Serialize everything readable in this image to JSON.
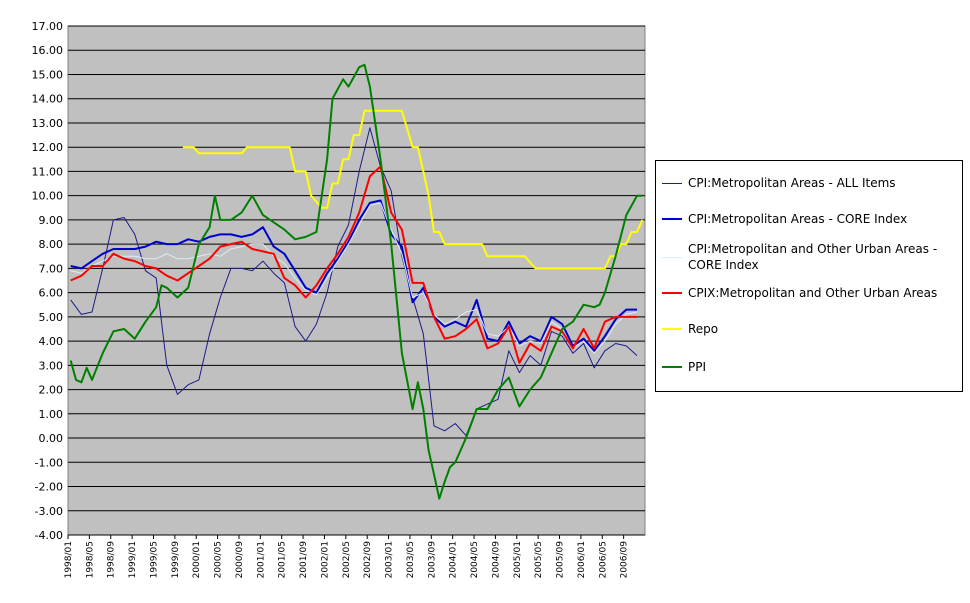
{
  "chart_data": {
    "type": "line",
    "title": "",
    "xlabel": "",
    "ylabel": "",
    "ylim": [
      -4,
      17
    ],
    "y_ticks": [
      "17.00",
      "16.00",
      "15.00",
      "14.00",
      "13.00",
      "12.00",
      "11.00",
      "10.00",
      "9.00",
      "8.00",
      "7.00",
      "6.00",
      "5.00",
      "4.00",
      "3.00",
      "2.00",
      "1.00",
      "0.00",
      "-1.00",
      "-2.00",
      "-3.00",
      "-4.00"
    ],
    "x_tick_labels": [
      "1998/01",
      "1998/05",
      "1998/09",
      "1999/01",
      "1999/05",
      "1999/09",
      "2000/01",
      "2000/05",
      "2000/09",
      "2001/01",
      "2001/05",
      "2001/09",
      "2002/01",
      "2002/05",
      "2002/09",
      "2003/01",
      "2003/05",
      "2003/09",
      "2004/01",
      "2004/05",
      "2004/09",
      "2005/01",
      "2005/05",
      "2005/09",
      "2006/01",
      "2006/05",
      "2006/09"
    ],
    "grid": true,
    "plot_background": "#c0c0c0",
    "legend_position": "right",
    "series": [
      {
        "name": "CPI:Metropolitan Areas - ALL Items",
        "color": "#1c1c8a",
        "x": [
          "1998/01",
          "1998/03",
          "1998/05",
          "1998/07",
          "1998/09",
          "1998/11",
          "1999/01",
          "1999/03",
          "1999/05",
          "1999/07",
          "1999/09",
          "1999/11",
          "2000/01",
          "2000/03",
          "2000/05",
          "2000/07",
          "2000/09",
          "2000/11",
          "2001/01",
          "2001/03",
          "2001/05",
          "2001/07",
          "2001/09",
          "2001/11",
          "2002/01",
          "2002/03",
          "2002/05",
          "2002/07",
          "2002/09",
          "2002/11",
          "2003/01",
          "2003/03",
          "2003/05",
          "2003/07",
          "2003/09",
          "2003/11",
          "2004/01",
          "2004/03",
          "2004/05",
          "2004/07",
          "2004/09",
          "2004/11",
          "2005/01",
          "2005/03",
          "2005/05",
          "2005/07",
          "2005/09",
          "2005/11",
          "2006/01",
          "2006/03",
          "2006/05",
          "2006/07",
          "2006/09",
          "2006/11"
        ],
        "values": [
          5.7,
          5.1,
          5.2,
          7.0,
          9.0,
          9.1,
          8.4,
          6.9,
          6.6,
          3.0,
          1.8,
          2.2,
          2.4,
          4.3,
          5.8,
          7.0,
          7.0,
          6.9,
          7.3,
          6.8,
          6.4,
          4.6,
          4.0,
          4.7,
          6.0,
          7.9,
          8.8,
          11.0,
          12.8,
          11.2,
          10.2,
          7.5,
          5.8,
          4.3,
          0.5,
          0.3,
          0.6,
          0.1,
          1.2,
          1.4,
          1.6,
          3.6,
          2.7,
          3.4,
          3.0,
          4.4,
          4.2,
          3.5,
          3.9,
          2.9,
          3.6,
          3.9,
          3.8,
          3.4
        ]
      },
      {
        "name": "CPI:Metropolitan Areas - CORE Index",
        "color": "#0000cc",
        "x": [
          "1998/01",
          "1998/03",
          "1998/05",
          "1998/07",
          "1998/09",
          "1998/11",
          "1999/01",
          "1999/03",
          "1999/05",
          "1999/07",
          "1999/09",
          "1999/11",
          "2000/01",
          "2000/03",
          "2000/05",
          "2000/07",
          "2000/09",
          "2000/11",
          "2001/01",
          "2001/03",
          "2001/05",
          "2001/07",
          "2001/09",
          "2001/11",
          "2002/01",
          "2002/03",
          "2002/05",
          "2002/07",
          "2002/09",
          "2002/11",
          "2003/01",
          "2003/03",
          "2003/05",
          "2003/07",
          "2003/09",
          "2003/11",
          "2004/01",
          "2004/03",
          "2004/05",
          "2004/07",
          "2004/09",
          "2004/11",
          "2005/01",
          "2005/03",
          "2005/05",
          "2005/07",
          "2005/09",
          "2005/11",
          "2006/01",
          "2006/03",
          "2006/05",
          "2006/07",
          "2006/09",
          "2006/11"
        ],
        "values": [
          7.1,
          7.0,
          7.3,
          7.6,
          7.8,
          7.8,
          7.8,
          7.9,
          8.1,
          8.0,
          8.0,
          8.2,
          8.1,
          8.3,
          8.4,
          8.4,
          8.3,
          8.4,
          8.7,
          7.9,
          7.6,
          6.9,
          6.2,
          6.0,
          6.8,
          7.4,
          8.1,
          9.0,
          9.7,
          9.8,
          8.4,
          7.9,
          5.6,
          6.2,
          5.0,
          4.6,
          4.8,
          4.6,
          5.7,
          4.1,
          4.0,
          4.8,
          3.9,
          4.2,
          4.0,
          5.0,
          4.7,
          3.8,
          4.1,
          3.6,
          4.2,
          4.9,
          5.3,
          5.3
        ]
      },
      {
        "name": "CPI:Metropolitan and Other Urban Areas - CORE Index",
        "color": "#dcecf8",
        "x": [
          "1998/01",
          "1998/03",
          "1998/05",
          "1998/07",
          "1998/09",
          "1998/11",
          "1999/01",
          "1999/03",
          "1999/05",
          "1999/07",
          "1999/09",
          "1999/11",
          "2000/01",
          "2000/03",
          "2000/05",
          "2000/07",
          "2000/09",
          "2000/11",
          "2001/01",
          "2001/03",
          "2001/05",
          "2001/07",
          "2001/09",
          "2001/11",
          "2002/01",
          "2002/03",
          "2002/05",
          "2002/07",
          "2002/09",
          "2002/11",
          "2003/01",
          "2003/03",
          "2003/05",
          "2003/07",
          "2003/09",
          "2003/11",
          "2004/01",
          "2004/03",
          "2004/05",
          "2004/07",
          "2004/09",
          "2004/11",
          "2005/01",
          "2005/03",
          "2005/05",
          "2005/07",
          "2005/09",
          "2005/11",
          "2006/01",
          "2006/03",
          "2006/05",
          "2006/07",
          "2006/09",
          "2006/11"
        ],
        "values": [
          6.9,
          6.8,
          7.1,
          7.3,
          7.5,
          7.5,
          7.5,
          7.4,
          7.4,
          7.6,
          7.4,
          7.4,
          7.5,
          7.6,
          7.5,
          7.8,
          7.9,
          8.0,
          8.0,
          7.5,
          7.2,
          6.6,
          6.1,
          5.9,
          6.6,
          7.3,
          8.0,
          8.8,
          9.6,
          9.7,
          8.6,
          7.6,
          5.8,
          6.0,
          5.1,
          4.7,
          4.9,
          5.2,
          5.3,
          4.3,
          4.2,
          4.6,
          3.8,
          4.0,
          3.9,
          4.8,
          4.5,
          3.7,
          4.0,
          3.5,
          4.0,
          4.7,
          5.1,
          5.2
        ]
      },
      {
        "name": "CPIX:Metropolitan and Other Urban Areas",
        "color": "#ff0000",
        "x": [
          "1998/01",
          "1998/03",
          "1998/05",
          "1998/07",
          "1998/09",
          "1998/11",
          "1999/01",
          "1999/03",
          "1999/05",
          "1999/07",
          "1999/09",
          "1999/11",
          "2000/01",
          "2000/03",
          "2000/05",
          "2000/07",
          "2000/09",
          "2000/11",
          "2001/01",
          "2001/03",
          "2001/05",
          "2001/07",
          "2001/09",
          "2001/11",
          "2002/01",
          "2002/03",
          "2002/05",
          "2002/07",
          "2002/09",
          "2002/11",
          "2003/01",
          "2003/03",
          "2003/05",
          "2003/07",
          "2003/09",
          "2003/11",
          "2004/01",
          "2004/03",
          "2004/05",
          "2004/07",
          "2004/09",
          "2004/11",
          "2005/01",
          "2005/03",
          "2005/05",
          "2005/07",
          "2005/09",
          "2005/11",
          "2006/01",
          "2006/03",
          "2006/05",
          "2006/07",
          "2006/09",
          "2006/11"
        ],
        "values": [
          6.5,
          6.7,
          7.1,
          7.1,
          7.6,
          7.4,
          7.3,
          7.1,
          7.0,
          6.7,
          6.5,
          6.8,
          7.1,
          7.4,
          7.9,
          8.0,
          8.1,
          7.8,
          7.7,
          7.6,
          6.6,
          6.3,
          5.8,
          6.3,
          7.0,
          7.6,
          8.3,
          9.3,
          10.8,
          11.2,
          9.3,
          8.6,
          6.4,
          6.4,
          5.0,
          4.1,
          4.2,
          4.5,
          4.9,
          3.7,
          3.9,
          4.6,
          3.1,
          3.9,
          3.6,
          4.6,
          4.4,
          3.7,
          4.5,
          3.7,
          4.8,
          5.0,
          5.0,
          5.0
        ]
      },
      {
        "name": "Repo",
        "color": "#ffff00",
        "x": [
          "1999/10",
          "1999/12",
          "2000/01",
          "2000/03",
          "2000/05",
          "2000/07",
          "2000/09",
          "2000/10",
          "2000/12",
          "2001/02",
          "2001/04",
          "2001/06",
          "2001/07",
          "2001/09",
          "2001/10",
          "2001/12",
          "2002/01",
          "2002/02",
          "2002/03",
          "2002/04",
          "2002/05",
          "2002/06",
          "2002/07",
          "2002/08",
          "2002/09",
          "2002/10",
          "2002/11",
          "2003/01",
          "2003/03",
          "2003/05",
          "2003/06",
          "2003/07",
          "2003/08",
          "2003/09",
          "2003/10",
          "2003/11",
          "2003/12",
          "2004/02",
          "2004/04",
          "2004/06",
          "2004/07",
          "2004/08",
          "2004/10",
          "2004/12",
          "2005/02",
          "2005/04",
          "2005/05",
          "2005/07",
          "2005/09",
          "2005/11",
          "2006/01",
          "2006/03",
          "2006/05",
          "2006/06",
          "2006/07",
          "2006/08",
          "2006/09",
          "2006/10",
          "2006/11",
          "2006/12"
        ],
        "values": [
          12.0,
          12.0,
          11.75,
          11.75,
          11.75,
          11.75,
          11.75,
          12.0,
          12.0,
          12.0,
          12.0,
          12.0,
          11.0,
          11.0,
          10.0,
          9.5,
          9.5,
          10.5,
          10.5,
          11.5,
          11.5,
          12.5,
          12.5,
          13.5,
          13.5,
          13.5,
          13.5,
          13.5,
          13.5,
          12.0,
          12.0,
          11.0,
          10.0,
          8.5,
          8.5,
          8.0,
          8.0,
          8.0,
          8.0,
          8.0,
          7.5,
          7.5,
          7.5,
          7.5,
          7.5,
          7.0,
          7.0,
          7.0,
          7.0,
          7.0,
          7.0,
          7.0,
          7.0,
          7.5,
          7.5,
          8.0,
          8.0,
          8.5,
          8.5,
          9.0
        ]
      },
      {
        "name": "PPI",
        "color": "#008000",
        "x": [
          "1998/01",
          "1998/02",
          "1998/03",
          "1998/04",
          "1998/05",
          "1998/07",
          "1998/09",
          "1998/11",
          "1999/01",
          "1999/03",
          "1999/05",
          "1999/06",
          "1999/07",
          "1999/09",
          "1999/11",
          "2000/01",
          "2000/03",
          "2000/04",
          "2000/05",
          "2000/07",
          "2000/09",
          "2000/11",
          "2001/01",
          "2001/03",
          "2001/05",
          "2001/07",
          "2001/09",
          "2001/11",
          "2002/01",
          "2002/02",
          "2002/04",
          "2002/05",
          "2002/07",
          "2002/08",
          "2002/09",
          "2002/11",
          "2003/01",
          "2003/03",
          "2003/05",
          "2003/06",
          "2003/07",
          "2003/08",
          "2003/09",
          "2003/10",
          "2003/11",
          "2003/12",
          "2004/01",
          "2004/03",
          "2004/05",
          "2004/07",
          "2004/09",
          "2004/11",
          "2005/01",
          "2005/03",
          "2005/05",
          "2005/07",
          "2005/09",
          "2005/11",
          "2006/01",
          "2006/03",
          "2006/04",
          "2006/05",
          "2006/07",
          "2006/09",
          "2006/11",
          "2006/12"
        ],
        "values": [
          3.2,
          2.4,
          2.3,
          2.9,
          2.4,
          3.5,
          4.4,
          4.5,
          4.1,
          4.8,
          5.4,
          6.3,
          6.2,
          5.8,
          6.2,
          8.0,
          8.7,
          10.0,
          9.0,
          9.0,
          9.3,
          10.0,
          9.2,
          8.9,
          8.6,
          8.2,
          8.3,
          8.5,
          11.5,
          14.0,
          14.8,
          14.5,
          15.3,
          15.4,
          14.5,
          11.5,
          8.0,
          3.5,
          1.2,
          2.3,
          1.2,
          -0.5,
          -1.5,
          -2.5,
          -1.8,
          -1.2,
          -1.0,
          0.0,
          1.2,
          1.2,
          2.0,
          2.5,
          1.3,
          2.0,
          2.5,
          3.5,
          4.5,
          4.8,
          5.5,
          5.4,
          5.5,
          6.0,
          7.5,
          9.2,
          10.0,
          10.0
        ]
      }
    ]
  }
}
